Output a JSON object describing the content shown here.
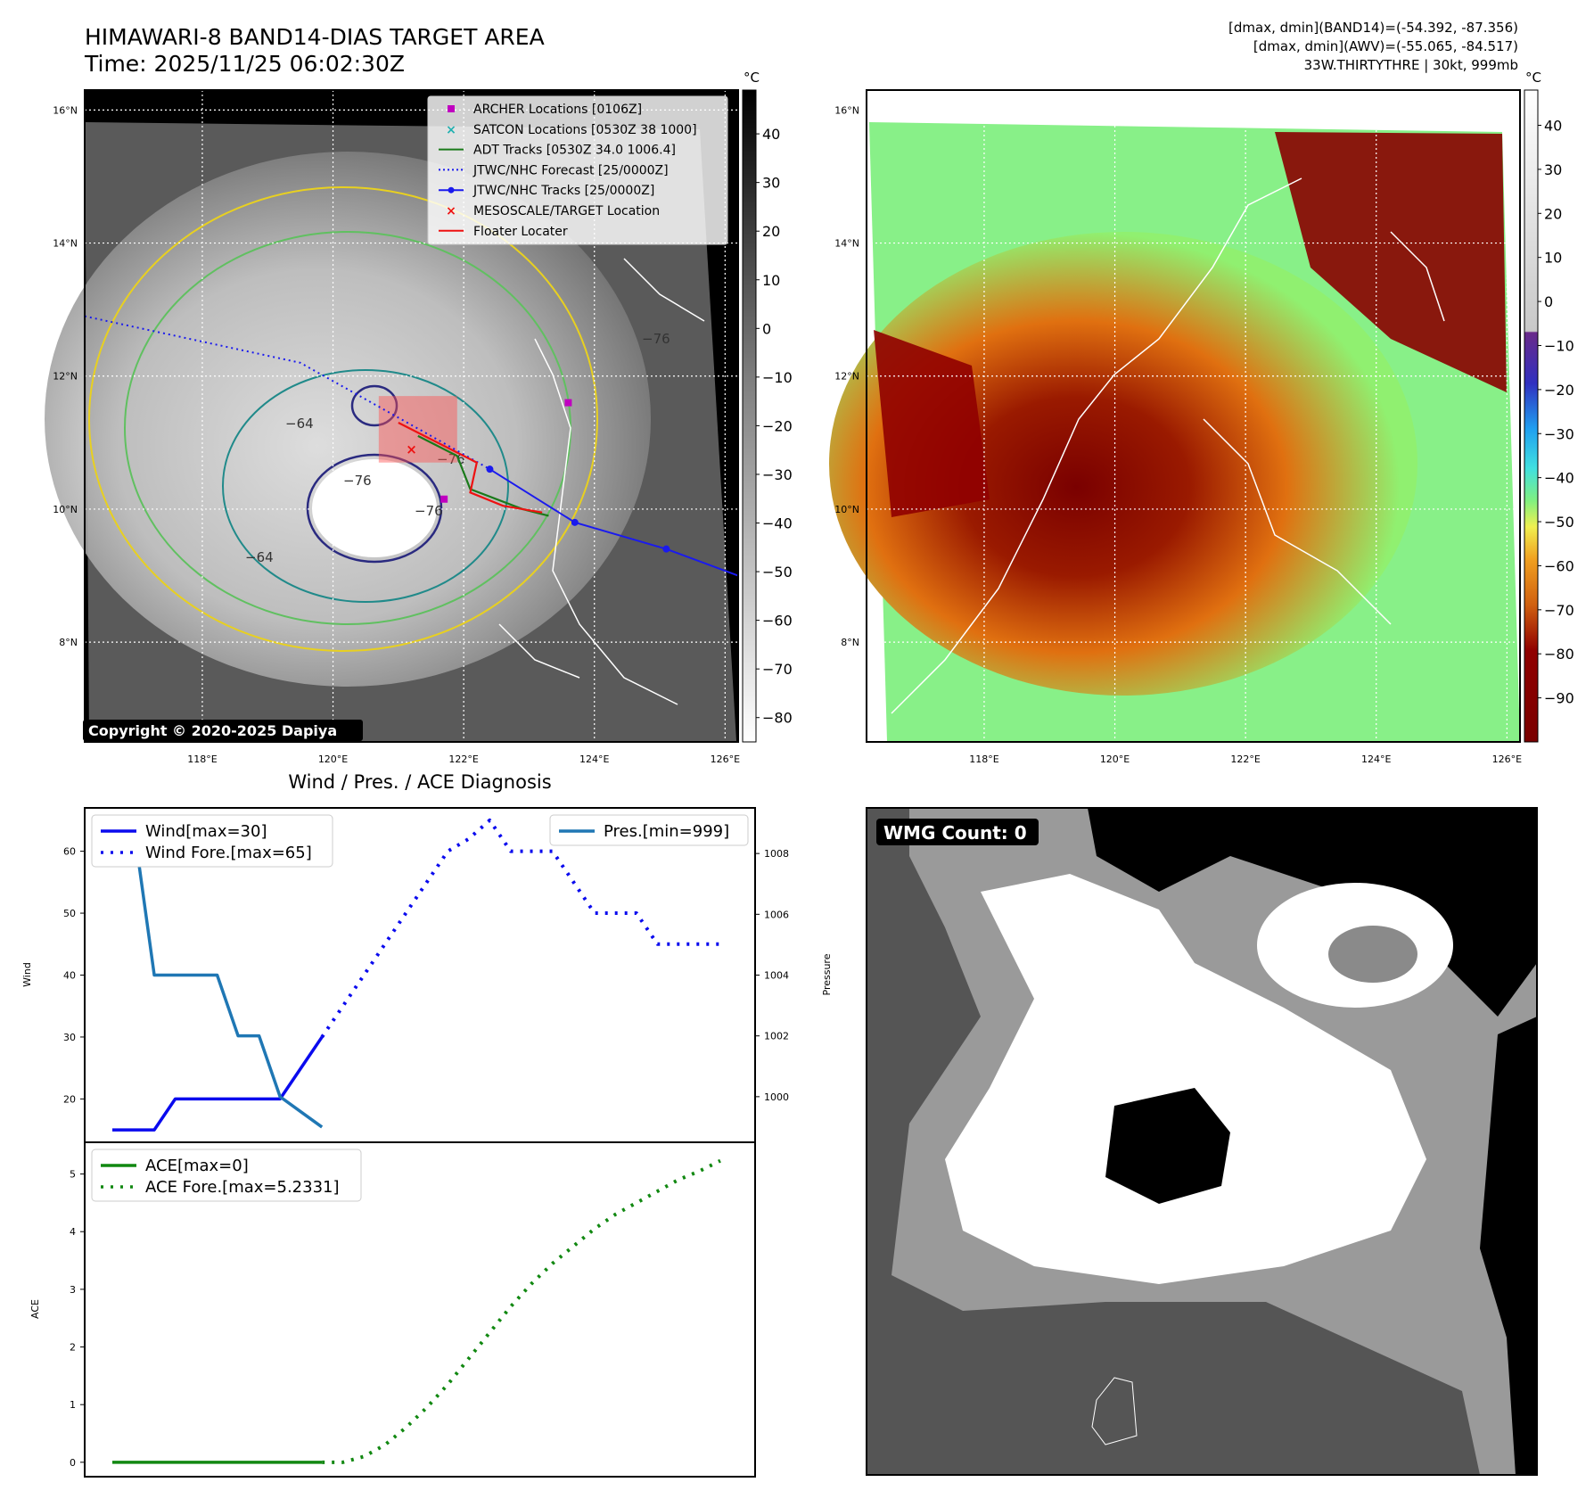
{
  "header": {
    "title_line1": "HIMAWARI-8 BAND14-DIAS TARGET AREA",
    "title_line2": "Time: 2025/11/25 06:02:30Z",
    "info_line1": "[dmax, dmin](BAND14)=(-54.392, -87.356)",
    "info_line2": "[dmax, dmin](AWV)=(-55.065, -84.517)",
    "info_line3": "33W.THIRTYTHRE | 30kt, 999mb"
  },
  "map_axes": {
    "lat_labels": [
      "16°N",
      "14°N",
      "12°N",
      "10°N",
      "8°N"
    ],
    "lat_values": [
      16,
      14,
      12,
      10,
      8
    ],
    "lon_labels": [
      "118°E",
      "120°E",
      "122°E",
      "124°E",
      "126°E"
    ],
    "lon_values": [
      118,
      120,
      122,
      124,
      126
    ],
    "lon_range": [
      116.2,
      126.2
    ],
    "lat_range": [
      6.5,
      16.3
    ]
  },
  "ir_panel": {
    "colorbar_unit": "°C",
    "colorbar_ticks": [
      "40",
      "30",
      "20",
      "10",
      "0",
      "−10",
      "−20",
      "−30",
      "−40",
      "−50",
      "−60",
      "−70",
      "−80"
    ],
    "colorbar_values": [
      40,
      30,
      20,
      10,
      0,
      -10,
      -20,
      -30,
      -40,
      -50,
      -60,
      -70,
      -80
    ],
    "contour_labels": [
      "−76",
      "−64",
      "−76",
      "−64",
      "−76",
      "−76"
    ],
    "copyright": "Copyright © 2020-2025 Dapiya",
    "legend": [
      {
        "label": "ARCHER Locations [0106Z]",
        "marker": "square",
        "color": "#c000c0"
      },
      {
        "label": "SATCON Locations [0530Z 38 1000]",
        "marker": "x",
        "color": "#20b0b0"
      },
      {
        "label": "ADT Tracks [0530Z 34.0 1006.4]",
        "marker": "line",
        "color": "#1a7a1a"
      },
      {
        "label": "JTWC/NHC Forecast [25/0000Z]",
        "marker": "dotted",
        "color": "#1a1aee"
      },
      {
        "label": "JTWC/NHC Tracks [25/0000Z]",
        "marker": "line-dot",
        "color": "#1a1aee"
      },
      {
        "label": "MESOSCALE/TARGET Location",
        "marker": "x",
        "color": "#ee1111"
      },
      {
        "label": "Floater Locater",
        "marker": "line",
        "color": "#ee1111"
      }
    ],
    "jtwc_track_points": [
      [
        122.4,
        10.6
      ],
      [
        123.7,
        9.8
      ],
      [
        125.1,
        9.4
      ],
      [
        126.2,
        9.0
      ]
    ],
    "jtwc_forecast_points": [
      [
        116.2,
        12.9
      ],
      [
        119.5,
        12.2
      ],
      [
        121.5,
        11.1
      ],
      [
        122.4,
        10.6
      ]
    ],
    "archer_points": [
      [
        123.6,
        11.6
      ],
      [
        121.7,
        10.15
      ]
    ],
    "target_point": [
      121.2,
      10.9
    ],
    "floater_box": {
      "lon": [
        120.7,
        121.9
      ],
      "lat": [
        10.7,
        11.7
      ]
    }
  },
  "awv_panel": {
    "colorbar_unit": "°C",
    "colorbar_ticks": [
      "40",
      "30",
      "20",
      "10",
      "0",
      "−10",
      "−20",
      "−30",
      "−40",
      "−50",
      "−60",
      "−70",
      "−80",
      "−90"
    ],
    "colorbar_values": [
      40,
      30,
      20,
      10,
      0,
      -10,
      -20,
      -30,
      -40,
      -50,
      -60,
      -70,
      -80,
      -90
    ]
  },
  "wmg_panel": {
    "label": "WMG Count: 0"
  },
  "chart_data": [
    {
      "type": "line",
      "title": "Wind / Pres. / ACE Diagnosis",
      "ylabel": "Wind",
      "ylabel_right": "Pressure",
      "ylim": [
        13,
        67
      ],
      "y_right_lim": [
        998.5,
        1009.5
      ],
      "yticks": [
        20,
        30,
        40,
        50,
        60
      ],
      "yticks_right": [
        1000,
        1002,
        1004,
        1006,
        1008
      ],
      "x": [
        0,
        1,
        2,
        3,
        4,
        5,
        6,
        7,
        8,
        9,
        10,
        11,
        12,
        13,
        14,
        15,
        16,
        17,
        18,
        19,
        20,
        21,
        22,
        23,
        24,
        25,
        26,
        27,
        28,
        29
      ],
      "series": [
        {
          "name": "Wind[max=30]",
          "axis": "left",
          "style": "solid",
          "color": "#0a0aee",
          "x": [
            0,
            1,
            2,
            3,
            4,
            5,
            6,
            7,
            8,
            9,
            10
          ],
          "values": [
            15,
            15,
            15,
            20,
            20,
            20,
            20,
            20,
            20,
            25,
            30
          ]
        },
        {
          "name": "Wind Fore.[max=65]",
          "axis": "left",
          "style": "dotted",
          "color": "#0a0aee",
          "x": [
            10,
            11,
            12,
            13,
            14,
            15,
            16,
            17,
            18,
            19,
            20,
            21,
            22,
            23,
            24,
            25,
            26,
            27,
            28,
            29
          ],
          "values": [
            30,
            35,
            40,
            45,
            50,
            55,
            60,
            62,
            65,
            60,
            60,
            60,
            55,
            50,
            50,
            50,
            45,
            45,
            45,
            45
          ]
        },
        {
          "name": "Pres.[min=999]",
          "axis": "right",
          "style": "solid",
          "color": "#1f77b4",
          "x": [
            0,
            1,
            2,
            3,
            4,
            5,
            6,
            7,
            8,
            9,
            10
          ],
          "values": [
            1009,
            1009,
            1004,
            1004,
            1004,
            1004,
            1002,
            1002,
            1000,
            999.5,
            999
          ]
        }
      ]
    },
    {
      "type": "line",
      "ylabel": "ACE",
      "ylim": [
        -0.25,
        5.55
      ],
      "yticks": [
        0,
        1,
        2,
        3,
        4,
        5
      ],
      "x": [
        0,
        1,
        2,
        3,
        4,
        5,
        6,
        7,
        8,
        9,
        10,
        11,
        12,
        13,
        14,
        15,
        16,
        17,
        18,
        19,
        20,
        21,
        22,
        23,
        24,
        25,
        26,
        27,
        28,
        29
      ],
      "series": [
        {
          "name": "ACE[max=0]",
          "style": "solid",
          "color": "#118811",
          "x": [
            0,
            1,
            2,
            3,
            4,
            5,
            6,
            7,
            8,
            9,
            10
          ],
          "values": [
            0,
            0,
            0,
            0,
            0,
            0,
            0,
            0,
            0,
            0,
            0
          ]
        },
        {
          "name": "ACE Fore.[max=5.2331]",
          "style": "dotted",
          "color": "#118811",
          "x": [
            10,
            11,
            12,
            13,
            14,
            15,
            16,
            17,
            18,
            19,
            20,
            21,
            22,
            23,
            24,
            25,
            26,
            27,
            28,
            29
          ],
          "values": [
            0,
            0,
            0.1,
            0.3,
            0.6,
            0.95,
            1.35,
            1.8,
            2.25,
            2.7,
            3.1,
            3.45,
            3.75,
            4.05,
            4.3,
            4.5,
            4.7,
            4.9,
            5.05,
            5.23
          ]
        }
      ]
    }
  ]
}
